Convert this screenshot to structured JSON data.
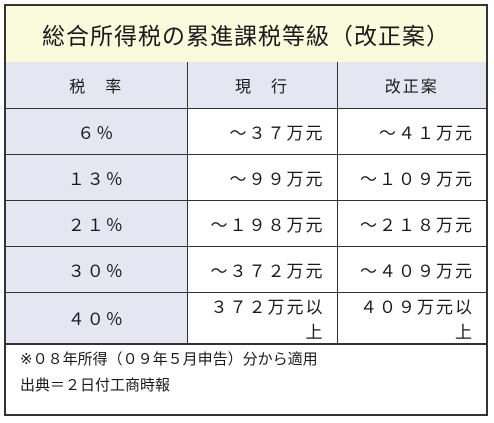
{
  "title": "総合所得税の累進課税等級（改正案）",
  "table": {
    "headers": [
      "税　率",
      "現　行",
      "改正案"
    ],
    "rows": [
      {
        "rate": "６％",
        "current": "～３７万元",
        "proposed": "～４１万元"
      },
      {
        "rate": "１３％",
        "current": "～９９万元",
        "proposed": "～１０９万元"
      },
      {
        "rate": "２１％",
        "current": "～１９８万元",
        "proposed": "～２１８万元"
      },
      {
        "rate": "３０％",
        "current": "～３７２万元",
        "proposed": "～４０９万元"
      },
      {
        "rate": "４０％",
        "current": "３７２万元以上",
        "proposed": "４０９万元以上"
      }
    ]
  },
  "notes": {
    "line1": "※０８年所得（０９年５月申告）分から適用",
    "line2": "出典＝２日付工商時報"
  }
}
